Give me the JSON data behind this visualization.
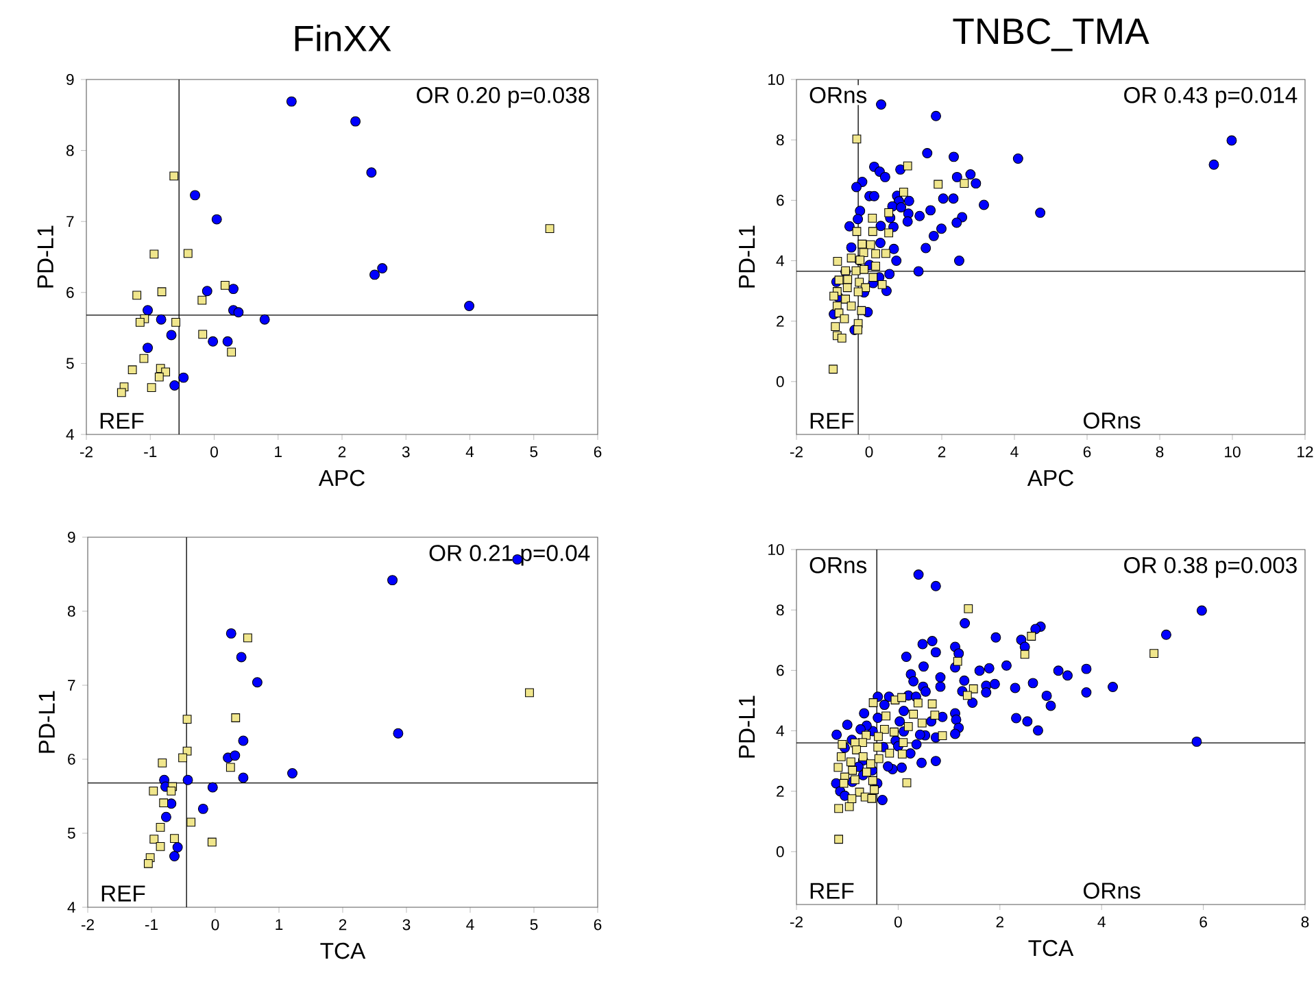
{
  "chart_data": [
    {
      "type": "scatter",
      "title": "FinXX",
      "xlabel": "APC",
      "ylabel": "PD-L1",
      "xlim": [
        -2,
        6
      ],
      "xticks": [
        -2,
        -1,
        0,
        1,
        2,
        3,
        4,
        5,
        6
      ],
      "ylim": [
        4,
        9
      ],
      "yticks": [
        4,
        5,
        6,
        7,
        8,
        9
      ],
      "annotations": [
        "OR 0.20 p=0.038",
        "REF"
      ],
      "ref_lines": [
        {
          "axis": "x",
          "value": -0.55
        },
        {
          "axis": "y",
          "value": 5.68
        }
      ],
      "series": [
        {
          "color": "#0000ff",
          "marker": "circle",
          "x": [
            1.21,
            2.21,
            2.46,
            -0.3,
            0.04,
            2.51,
            2.63,
            -0.11,
            0.3,
            3.99,
            -1.04,
            0.3,
            0.38,
            0.79,
            -0.83,
            -0.67,
            -0.02,
            0.21,
            -1.04,
            -0.48,
            -0.62
          ],
          "values": [
            8.69,
            8.41,
            7.69,
            7.37,
            7.03,
            6.25,
            6.34,
            6.02,
            6.05,
            5.81,
            5.75,
            5.75,
            5.72,
            5.62,
            5.62,
            5.4,
            5.31,
            5.31,
            5.22,
            4.8,
            4.69
          ]
        },
        {
          "color": "#f0e68c",
          "marker": "square",
          "x": [
            -0.63,
            5.25,
            -0.94,
            -0.41,
            -1.21,
            -0.82,
            0.17,
            -0.19,
            -1.09,
            -1.16,
            -0.6,
            -0.18,
            0.27,
            -1.1,
            -1.28,
            -0.84,
            -0.76,
            -0.86,
            -1.41,
            -1.45,
            -0.98
          ],
          "values": [
            7.64,
            6.9,
            6.54,
            6.55,
            5.96,
            6.01,
            6.1,
            5.89,
            5.63,
            5.58,
            5.58,
            5.41,
            5.16,
            5.07,
            4.91,
            4.93,
            4.88,
            4.81,
            4.67,
            4.59,
            4.66
          ]
        }
      ]
    },
    {
      "type": "scatter",
      "title": "TNBC_TMA",
      "xlabel": "APC",
      "ylabel": "PD-L1",
      "xlim": [
        -2,
        12
      ],
      "xticks": [
        -2,
        0,
        2,
        4,
        6,
        8,
        10,
        12
      ],
      "ylim": [
        -1.75,
        10
      ],
      "yticks": [
        0,
        2,
        4,
        6,
        8,
        10
      ],
      "annotations": [
        "OR 0.43 p=0.014",
        "REF",
        "ORns",
        "ORns"
      ],
      "ref_lines": [
        {
          "axis": "x",
          "value": -0.3
        },
        {
          "axis": "y",
          "value": 3.65
        }
      ],
      "series": [
        {
          "color": "#0000ff",
          "marker": "circle",
          "x": [
            0.33,
            1.84,
            9.98,
            9.49,
            4.1,
            1.6,
            2.33,
            0.14,
            0.29,
            0.44,
            0.86,
            -0.19,
            -0.35,
            0.01,
            0.14,
            2.42,
            2.79,
            2.94,
            0.77,
            0.82,
            1.1,
            0.64,
            0.88,
            2.04,
            2.32,
            3.16,
            4.71,
            1.69,
            1.39,
            1.08,
            1.06,
            0.58,
            2.56,
            2.41,
            -0.25,
            -0.31,
            -0.54,
            0.32,
            0.67,
            1.99,
            1.78,
            0.31,
            -0.49,
            0.68,
            1.56,
            0.75,
            2.48,
            1.36,
            0.56,
            0.28,
            0.11,
            0.48,
            -0.14,
            -0.04,
            -0.9,
            -0.85,
            -0.97,
            -0.4,
            -0.65,
            -0.27,
            0.01
          ],
          "values": [
            9.17,
            8.79,
            7.98,
            7.18,
            7.38,
            7.56,
            7.44,
            7.11,
            6.95,
            6.77,
            7.02,
            6.61,
            6.44,
            6.14,
            6.14,
            6.77,
            6.86,
            6.56,
            6.15,
            5.97,
            5.98,
            5.8,
            5.77,
            6.06,
            6.06,
            5.85,
            5.59,
            5.67,
            5.48,
            5.56,
            5.3,
            5.42,
            5.44,
            5.26,
            5.65,
            5.38,
            5.14,
            5.15,
            5.12,
            5.06,
            4.82,
            4.59,
            4.44,
            4.39,
            4.42,
            4.0,
            4.0,
            3.65,
            3.56,
            3.45,
            3.26,
            3.0,
            2.95,
            2.3,
            3.3,
            2.8,
            2.23,
            1.71,
            3.64,
            4.02,
            3.86
          ]
        },
        {
          "color": "#f0e68c",
          "marker": "square",
          "x": [
            -0.34,
            1.06,
            0.95,
            1.9,
            2.62,
            0.09,
            0.54,
            -0.34,
            0.1,
            0.54,
            -0.19,
            0.04,
            0.18,
            -0.15,
            0.46,
            -0.49,
            -0.87,
            -0.25,
            0.18,
            -0.65,
            -0.14,
            -0.36,
            0.11,
            0.36,
            -0.59,
            -0.83,
            -0.27,
            -0.6,
            -0.1,
            -0.88,
            -0.3,
            -0.97,
            -0.65,
            -0.88,
            -0.49,
            -0.21,
            -0.83,
            -0.68,
            -0.93,
            -0.3,
            -0.31,
            -0.88,
            -0.75,
            -0.99
          ],
          "values": [
            8.03,
            7.14,
            6.27,
            6.53,
            6.56,
            5.41,
            5.59,
            4.97,
            4.97,
            4.92,
            4.55,
            4.53,
            4.23,
            4.27,
            4.24,
            4.09,
            3.98,
            4.02,
            3.82,
            3.67,
            3.71,
            3.67,
            3.45,
            3.21,
            3.38,
            3.36,
            3.29,
            3.11,
            3.11,
            2.98,
            2.97,
            2.83,
            2.73,
            2.5,
            2.5,
            2.35,
            2.27,
            2.08,
            1.82,
            1.92,
            1.71,
            1.52,
            1.44,
            0.41
          ]
        }
      ]
    },
    {
      "type": "scatter",
      "xlabel": "TCA",
      "ylabel": "PD-L1",
      "xlim": [
        -2,
        6
      ],
      "xticks": [
        -2,
        -1,
        0,
        1,
        2,
        3,
        4,
        5,
        6
      ],
      "ylim": [
        4,
        9
      ],
      "yticks": [
        4,
        5,
        6,
        7,
        8,
        9
      ],
      "annotations": [
        "OR 0.21 p=0.04",
        "REF"
      ],
      "ref_lines": [
        {
          "axis": "x",
          "value": -0.45
        },
        {
          "axis": "y",
          "value": 5.68
        }
      ],
      "series": [
        {
          "color": "#0000ff",
          "marker": "circle",
          "x": [
            4.74,
            2.78,
            0.25,
            0.41,
            0.66,
            2.87,
            0.44,
            0.2,
            0.31,
            1.21,
            0.44,
            -0.43,
            -0.8,
            -0.78,
            -0.04,
            -0.69,
            -0.19,
            -0.77,
            -0.59,
            -0.64
          ],
          "values": [
            8.7,
            8.42,
            7.7,
            7.38,
            7.04,
            6.35,
            6.25,
            6.02,
            6.05,
            5.81,
            5.75,
            5.72,
            5.72,
            5.63,
            5.62,
            5.4,
            5.33,
            5.22,
            4.81,
            4.69
          ]
        },
        {
          "color": "#f0e68c",
          "marker": "square",
          "x": [
            0.51,
            4.93,
            -0.44,
            0.32,
            -0.83,
            -0.44,
            -0.51,
            0.24,
            -0.97,
            -0.67,
            -0.69,
            -0.81,
            -0.38,
            -0.86,
            -0.05,
            -0.96,
            -0.86,
            -0.64,
            -1.02,
            -1.05
          ],
          "values": [
            7.64,
            6.9,
            6.54,
            6.56,
            5.95,
            6.11,
            6.02,
            5.89,
            5.57,
            5.63,
            5.57,
            5.41,
            5.15,
            5.08,
            4.88,
            4.92,
            4.82,
            4.93,
            4.67,
            4.59
          ]
        }
      ]
    },
    {
      "type": "scatter",
      "xlabel": "TCA",
      "ylabel": "PD-L1",
      "xlim": [
        -2,
        8
      ],
      "xticks": [
        -2,
        0,
        2,
        4,
        6,
        8
      ],
      "ylim": [
        -1.75,
        10
      ],
      "yticks": [
        0,
        2,
        4,
        6,
        8,
        10
      ],
      "annotations": [
        "OR 0.38 p=0.003",
        "REF",
        "ORns",
        "ORns"
      ],
      "ref_lines": [
        {
          "axis": "x",
          "value": -0.42
        },
        {
          "axis": "y",
          "value": 3.6
        }
      ],
      "series": [
        {
          "color": "#0000ff",
          "marker": "circle",
          "x": [
            0.4,
            0.74,
            5.97,
            5.27,
            5.87,
            1.31,
            2.8,
            2.7,
            1.92,
            2.42,
            2.49,
            1.12,
            0.67,
            0.48,
            0.74,
            1.19,
            0.16,
            0.5,
            1.12,
            1.6,
            1.79,
            2.13,
            3.15,
            3.33,
            3.7,
            0.25,
            0.3,
            0.83,
            1.3,
            0.49,
            0.54,
            0.83,
            1.26,
            1.73,
            1.9,
            1.73,
            2.3,
            2.65,
            2.92,
            3.0,
            3.7,
            4.22,
            1.46,
            1.12,
            1.14,
            1.19,
            1.12,
            2.32,
            2.54,
            2.75,
            0.87,
            0.65,
            0.74,
            0.53,
            0.43,
            0.36,
            0.24,
            0.74,
            0.46,
            0.07,
            -0.11,
            -0.2,
            -0.31,
            -0.4,
            -0.18,
            0.2,
            0.35,
            -0.27,
            0.03,
            0.11,
            0.11,
            -0.05,
            0.0,
            -0.29,
            -0.4,
            -0.5,
            -0.67,
            -0.62,
            -0.74,
            -1.0,
            -1.21,
            -0.91,
            -1.05,
            -0.69,
            -0.78,
            -0.69,
            -0.9,
            -1.22,
            -1.14,
            -1.05,
            -0.41,
            -0.51
          ],
          "values": [
            9.17,
            8.79,
            7.98,
            7.18,
            3.64,
            7.56,
            7.45,
            7.37,
            7.09,
            7.01,
            6.78,
            6.78,
            6.97,
            6.87,
            6.6,
            6.56,
            6.45,
            6.13,
            6.1,
            5.99,
            6.07,
            6.16,
            5.99,
            5.83,
            6.05,
            5.87,
            5.64,
            5.77,
            5.66,
            5.46,
            5.3,
            5.46,
            5.31,
            5.49,
            5.55,
            5.27,
            5.42,
            5.58,
            5.16,
            4.83,
            5.27,
            5.45,
            4.93,
            4.58,
            4.37,
            4.1,
            3.9,
            4.42,
            4.31,
            4.01,
            4.46,
            4.31,
            3.78,
            3.85,
            3.87,
            3.55,
            3.25,
            3.0,
            2.94,
            2.78,
            2.73,
            2.82,
            1.71,
            5.13,
            5.13,
            5.17,
            5.13,
            4.86,
            4.31,
            4.66,
            3.98,
            3.67,
            3.49,
            3.46,
            4.43,
            3.99,
            4.58,
            4.17,
            4.05,
            4.2,
            3.87,
            3.7,
            3.44,
            3.02,
            2.81,
            2.53,
            2.31,
            2.26,
            2.0,
            1.85,
            2.26,
            2.69
          ]
        },
        {
          "color": "#f0e68c",
          "marker": "square",
          "x": [
            1.38,
            2.62,
            2.49,
            5.03,
            1.17,
            1.48,
            1.36,
            -0.49,
            -0.06,
            0.07,
            0.39,
            0.67,
            0.3,
            -0.24,
            0.72,
            0.47,
            0.2,
            -0.27,
            -0.08,
            -0.63,
            -0.39,
            0.87,
            0.1,
            -0.7,
            -0.4,
            -0.85,
            -0.82,
            -1.1,
            -0.17,
            0.08,
            -0.38,
            -1.12,
            -0.93,
            -0.69,
            -0.54,
            -1.18,
            -0.9,
            -0.62,
            -1.05,
            -0.85,
            -0.5,
            0.17,
            -1.07,
            -0.76,
            -0.47,
            -0.65,
            -0.52,
            -1.17,
            -0.96,
            -1.17,
            -0.91
          ],
          "values": [
            8.04,
            7.13,
            6.53,
            6.56,
            6.3,
            5.39,
            5.17,
            4.93,
            5.02,
            5.1,
            4.92,
            4.89,
            4.55,
            4.49,
            4.52,
            4.26,
            4.14,
            4.05,
            3.96,
            3.85,
            3.81,
            3.84,
            3.61,
            3.61,
            3.46,
            3.6,
            3.37,
            3.55,
            3.26,
            3.23,
            3.08,
            3.14,
            2.97,
            3.14,
            2.91,
            2.79,
            2.69,
            2.63,
            2.47,
            2.38,
            2.35,
            2.28,
            2.26,
            1.97,
            2.05,
            1.81,
            1.76,
            1.43,
            1.49,
            0.41,
            1.75
          ]
        }
      ]
    }
  ]
}
